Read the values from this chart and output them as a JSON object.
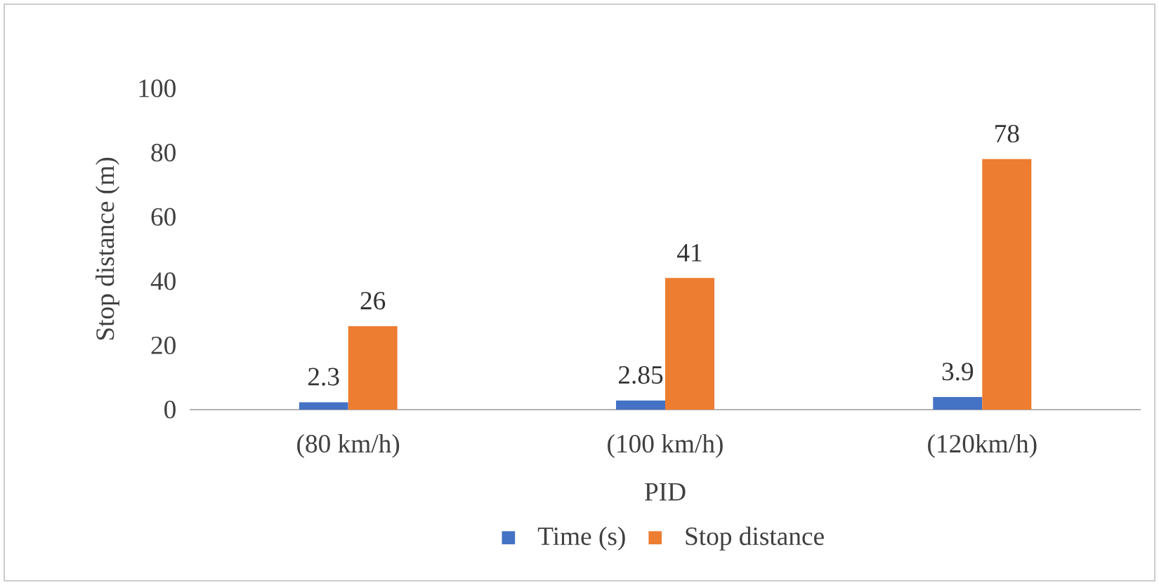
{
  "chart_data": {
    "type": "bar",
    "xlabel": "PID",
    "ylabel": "Stop distance  (m)",
    "categories": [
      "(80 km/h)",
      "(100 km/h)",
      "(120km/h)"
    ],
    "series": [
      {
        "name": "Time (s)",
        "color": "#4472c4",
        "values": [
          2.3,
          2.85,
          3.9
        ]
      },
      {
        "name": "Stop distance",
        "color": "#ed7d31",
        "values": [
          26,
          41,
          78
        ]
      }
    ],
    "ylim": [
      0,
      100
    ],
    "yticks": [
      0,
      20,
      40,
      60,
      80,
      100
    ],
    "data_labels": true,
    "legend": "bottom",
    "grid": false
  }
}
